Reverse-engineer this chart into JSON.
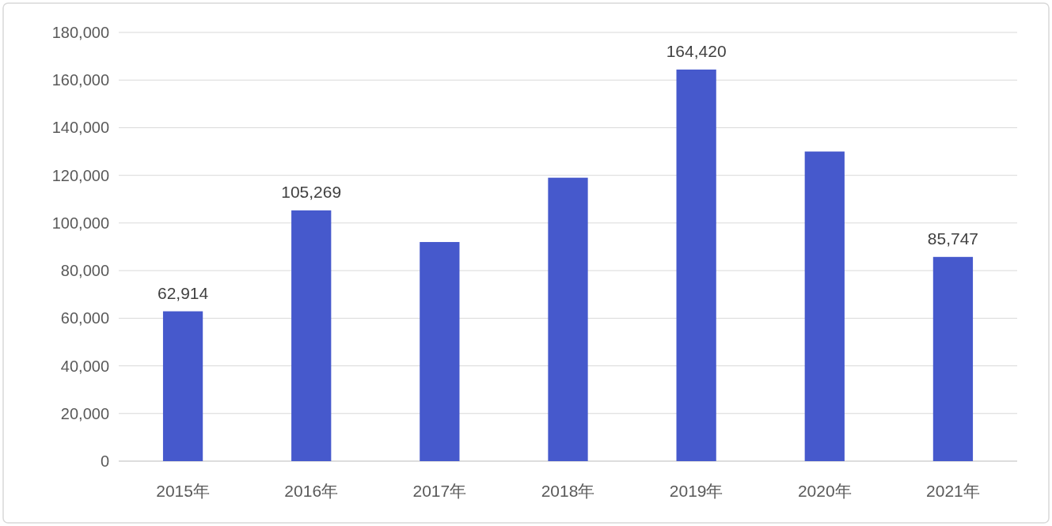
{
  "chart_data": {
    "type": "bar",
    "categories": [
      "2015年",
      "2016年",
      "2017年",
      "2018年",
      "2019年",
      "2020年",
      "2021年"
    ],
    "values": [
      62914,
      105269,
      92000,
      119000,
      164420,
      130000,
      85747
    ],
    "value_labels": [
      "62,914",
      "105,269",
      null,
      null,
      "164,420",
      null,
      "85,747"
    ],
    "color": "#4659cc",
    "ylim": [
      0,
      180000
    ],
    "yticks": [
      {
        "value": 0,
        "label": "0"
      },
      {
        "value": 20000,
        "label": "20,000"
      },
      {
        "value": 40000,
        "label": "40,000"
      },
      {
        "value": 60000,
        "label": "60,000"
      },
      {
        "value": 80000,
        "label": "80,000"
      },
      {
        "value": 100000,
        "label": "100,000"
      },
      {
        "value": 120000,
        "label": "120,000"
      },
      {
        "value": 140000,
        "label": "140,000"
      },
      {
        "value": 160000,
        "label": "160,000"
      },
      {
        "value": 180000,
        "label": "180,000"
      }
    ],
    "grid": "y"
  }
}
